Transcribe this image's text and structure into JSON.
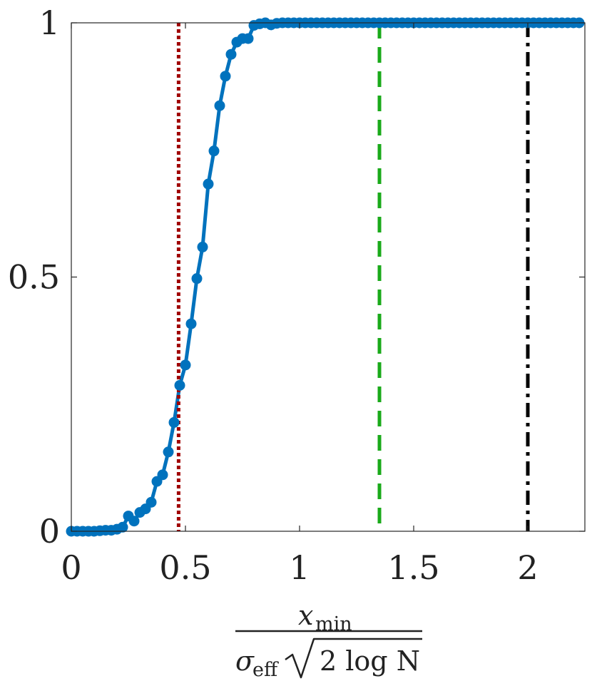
{
  "chart_data": {
    "type": "line",
    "title": "",
    "xlabel": {
      "numerator_symbol": "x",
      "numerator_subscript": "min",
      "denominator_symbol": "σ",
      "denominator_subscript": "eff",
      "denominator_radicand": "2 log N"
    },
    "ylabel": "",
    "xlim": [
      0,
      2.25
    ],
    "ylim": [
      0,
      1
    ],
    "xticks": [
      0,
      0.5,
      1,
      1.5,
      2
    ],
    "xtick_labels": [
      "0",
      "0.5",
      "1",
      "1.5",
      "2"
    ],
    "yticks": [
      0,
      0.5,
      1
    ],
    "ytick_labels": [
      "0",
      "0.5",
      "1"
    ],
    "grid": false,
    "series": [
      {
        "color": "#0072BD",
        "marker": "circle",
        "x": [
          0.0,
          0.025,
          0.05,
          0.075,
          0.1,
          0.125,
          0.15,
          0.175,
          0.2,
          0.225,
          0.25,
          0.275,
          0.3,
          0.325,
          0.35,
          0.375,
          0.4,
          0.425,
          0.45,
          0.475,
          0.5,
          0.525,
          0.55,
          0.575,
          0.6,
          0.625,
          0.65,
          0.675,
          0.7,
          0.725,
          0.75,
          0.775,
          0.8,
          0.825,
          0.85,
          0.875,
          0.9,
          0.925,
          0.95,
          0.975,
          1.0,
          1.025,
          1.05,
          1.075,
          1.1,
          1.125,
          1.15,
          1.175,
          1.2,
          1.225,
          1.25,
          1.275,
          1.3,
          1.325,
          1.35,
          1.375,
          1.4,
          1.425,
          1.45,
          1.475,
          1.5,
          1.525,
          1.55,
          1.575,
          1.6,
          1.625,
          1.65,
          1.675,
          1.7,
          1.725,
          1.75,
          1.775,
          1.8,
          1.825,
          1.85,
          1.875,
          1.9,
          1.925,
          1.95,
          1.975,
          2.0,
          2.025,
          2.05,
          2.075,
          2.1,
          2.125,
          2.15,
          2.175,
          2.2,
          2.225
        ],
        "y": [
          0.0,
          0.0,
          0.0,
          0.0,
          0.0,
          0.001,
          0.002,
          0.002,
          0.004,
          0.008,
          0.03,
          0.02,
          0.037,
          0.044,
          0.057,
          0.098,
          0.111,
          0.156,
          0.214,
          0.287,
          0.327,
          0.408,
          0.497,
          0.559,
          0.683,
          0.748,
          0.837,
          0.895,
          0.938,
          0.962,
          0.969,
          0.969,
          0.995,
          0.998,
          1.0,
          0.996,
          0.999,
          1.0,
          1.0,
          1.0,
          1.0,
          1.0,
          1.0,
          1.0,
          1.0,
          1.0,
          1.0,
          1.0,
          1.0,
          1.0,
          1.0,
          1.0,
          1.0,
          1.0,
          1.0,
          1.0,
          1.0,
          1.0,
          1.0,
          1.0,
          1.0,
          1.0,
          1.0,
          1.0,
          1.0,
          1.0,
          1.0,
          1.0,
          1.0,
          1.0,
          1.0,
          1.0,
          1.0,
          1.0,
          1.0,
          1.0,
          1.0,
          1.0,
          1.0,
          1.0,
          1.0,
          1.0,
          1.0,
          1.0,
          1.0,
          1.0,
          1.0,
          1.0,
          1.0,
          1.0
        ]
      }
    ],
    "vertical_lines": [
      {
        "x": 0.47,
        "color": "#A00000",
        "style": "dotted"
      },
      {
        "x": 1.35,
        "color": "#1AAA1A",
        "style": "dashed"
      },
      {
        "x": 2.0,
        "color": "#000000",
        "style": "dashdot"
      }
    ]
  }
}
